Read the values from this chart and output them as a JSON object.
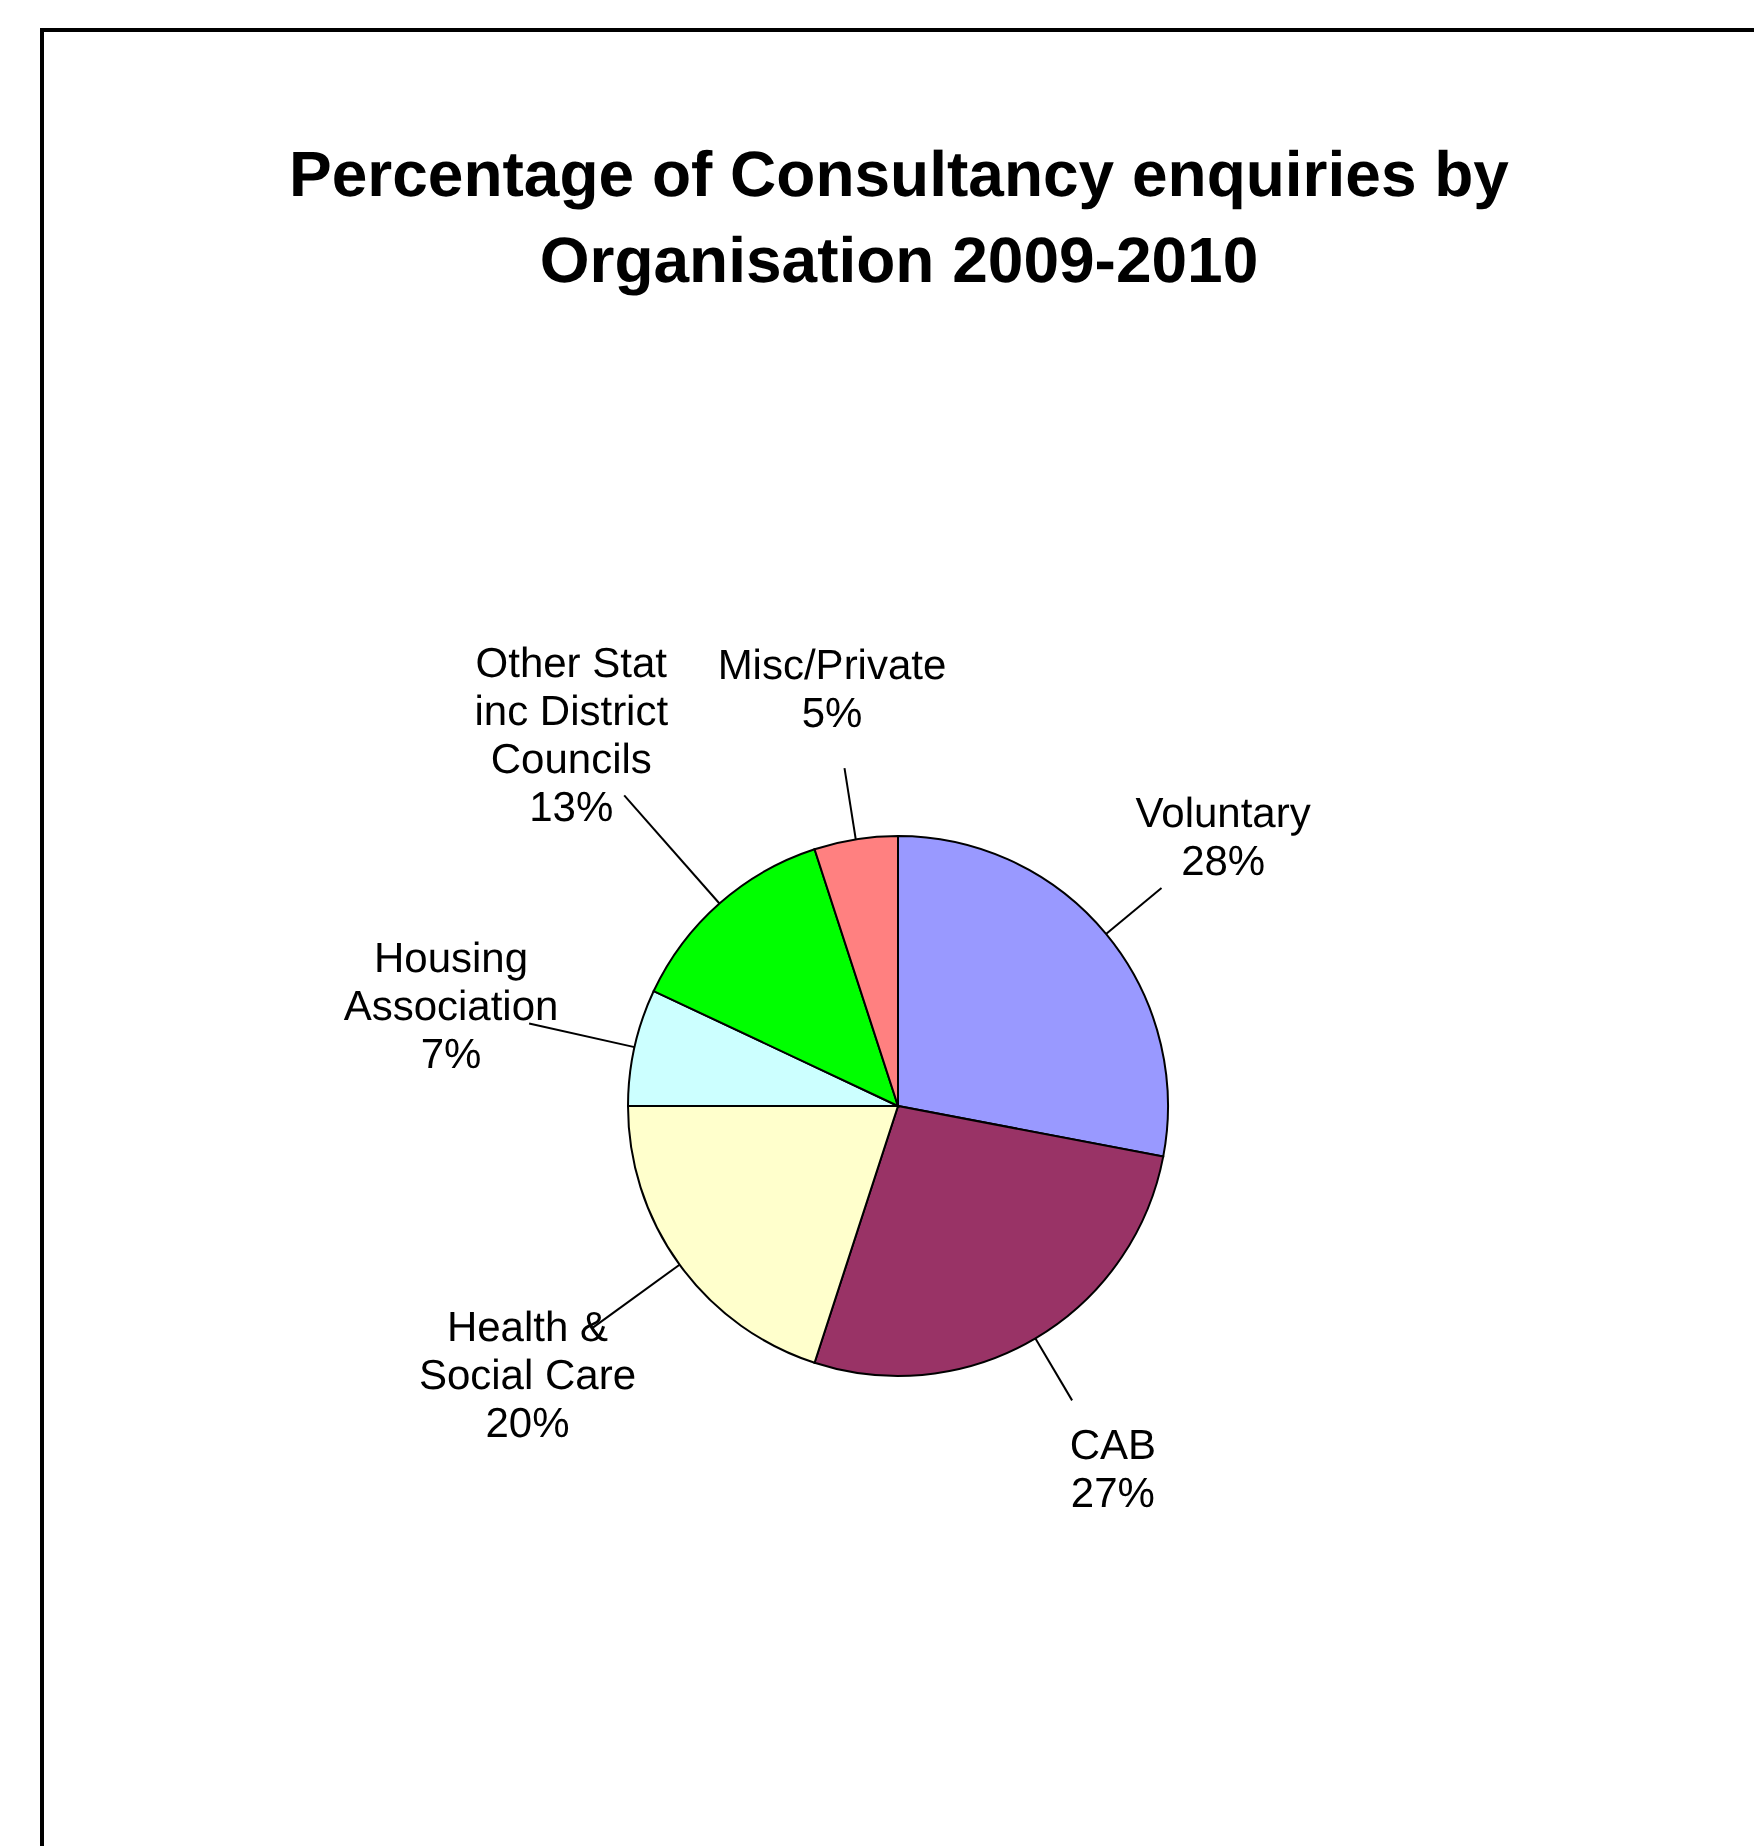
{
  "chart_data": {
    "type": "pie",
    "title": "Percentage of Consultancy enquiries by Organisation 2009-2010",
    "categories": [
      "Voluntary",
      "CAB",
      "Health & Social Care",
      "Housing Association",
      "Other Stat inc District Councils",
      "Misc/Private"
    ],
    "values": [
      28,
      27,
      20,
      7,
      13,
      5
    ],
    "value_labels": [
      "28%",
      "27%",
      "20%",
      "7%",
      "13%",
      "5%"
    ],
    "colors": [
      "#9999ff",
      "#993366",
      "#ffffcc",
      "#ccffff",
      "#00ff00",
      "#ff8080"
    ],
    "legend": false
  }
}
